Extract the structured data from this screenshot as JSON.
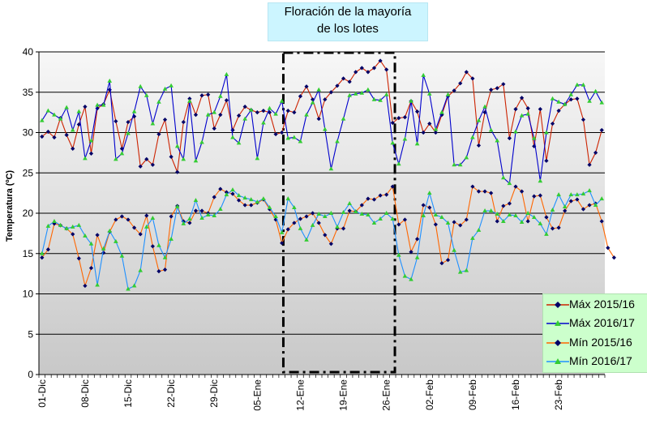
{
  "chart_data": {
    "type": "line",
    "title_line1": "Floración de la mayoría",
    "title_line2": "de los lotes",
    "ylabel": "Temperatura (ºC)",
    "ylim": [
      0,
      40
    ],
    "yticks": [
      0,
      5,
      10,
      15,
      20,
      25,
      30,
      35,
      40
    ],
    "grid": "horizontal",
    "legend_position": "bottom-right",
    "x_start": "01-Dic",
    "xtick_labels": [
      "01-Dic",
      "08-Dic",
      "15-Dic",
      "22-Dic",
      "29-Dic",
      "05-Ene",
      "12-Ene",
      "19-Ene",
      "26-Ene",
      "02-Feb",
      "09-Feb",
      "16-Feb",
      "23-Feb"
    ],
    "highlight_range_label": "Floración de la mayoría de los lotes",
    "highlight_range": [
      "10-Ene",
      "27-Ene"
    ],
    "series": [
      {
        "name": "Máx 2015/16",
        "color": "#cc2200",
        "marker": "diamond",
        "marker_color": "#000066",
        "values": [
          29.5,
          30.1,
          29.4,
          31.8,
          29.7,
          28.0,
          31.0,
          33.2,
          27.4,
          33.0,
          33.5,
          35.3,
          31.4,
          28.0,
          31.3,
          32.0,
          25.8,
          26.7,
          26.0,
          29.8,
          31.6,
          27.0,
          25.1,
          31.3,
          34.2,
          32.2,
          34.6,
          34.7,
          30.5,
          32.2,
          34.0,
          30.3,
          32.1,
          33.2,
          32.8,
          32.5,
          32.7,
          32.5,
          29.8,
          30.0,
          32.7,
          32.5,
          34.5,
          35.7,
          34.1,
          31.7,
          34.1,
          35.0,
          35.8,
          36.7,
          36.3,
          37.5,
          38.0,
          37.5,
          38.0,
          38.9,
          37.8,
          31.2,
          31.8,
          31.9,
          33.9,
          32.6,
          30.0,
          31.1,
          30.0,
          32.2,
          34.5,
          35.2,
          36.1,
          37.5,
          36.7,
          28.4,
          32.5,
          35.3,
          35.5,
          36.0,
          29.3,
          32.9,
          34.3,
          33.0,
          28.3,
          32.9,
          26.5,
          31.1,
          32.7,
          33.5,
          34.1,
          34.2,
          31.6,
          26.0,
          27.5,
          30.3
        ]
      },
      {
        "name": "Máx 2016/17",
        "color": "#0000cc",
        "marker": "triangle",
        "marker_color": "#33cc33",
        "values": [
          31.5,
          32.7,
          32.2,
          31.7,
          33.1,
          30.3,
          32.6,
          26.8,
          29.0,
          33.4,
          33.4,
          36.4,
          26.7,
          27.4,
          29.9,
          32.6,
          35.7,
          34.6,
          31.1,
          33.8,
          35.4,
          35.8,
          28.3,
          26.7,
          33.9,
          26.5,
          28.8,
          32.2,
          32.5,
          34.5,
          37.2,
          29.4,
          28.7,
          31.7,
          32.8,
          26.8,
          31.2,
          33.0,
          32.3,
          33.9,
          29.3,
          29.4,
          28.9,
          32.2,
          33.7,
          35.3,
          30.4,
          25.5,
          28.9,
          31.7,
          34.6,
          34.8,
          34.9,
          35.3,
          34.1,
          34.0,
          34.7,
          28.7,
          26.1,
          29.2,
          33.9,
          28.6,
          37.1,
          34.8,
          30.4,
          32.5,
          34.7,
          26.0,
          26.0,
          26.9,
          29.4,
          31.5,
          33.2,
          30.3,
          29.0,
          24.4,
          23.7,
          30.1,
          32.1,
          32.3,
          29.3,
          24.0,
          30.0,
          34.2,
          33.8,
          33.5,
          34.7,
          35.9,
          35.9,
          33.9,
          35.1,
          33.7
        ]
      },
      {
        "name": "Mín 2015/16",
        "color": "#ff6600",
        "marker": "diamond",
        "marker_color": "#000066",
        "values": [
          14.5,
          15.5,
          18.7,
          18.5,
          18.1,
          17.4,
          14.4,
          11.0,
          13.2,
          17.3,
          15.1,
          17.7,
          19.2,
          19.6,
          19.2,
          18.2,
          17.4,
          19.7,
          15.9,
          12.8,
          13.0,
          19.6,
          20.9,
          19.0,
          18.8,
          20.3,
          20.3,
          20.0,
          22.0,
          23.0,
          22.6,
          22.4,
          21.6,
          21.0,
          21.0,
          21.3,
          21.7,
          20.5,
          19.2,
          16.3,
          18.0,
          18.8,
          19.3,
          19.6,
          20.0,
          18.8,
          17.3,
          16.2,
          18.1,
          18.1,
          20.3,
          20.2,
          21.0,
          21.8,
          21.7,
          22.2,
          22.3,
          23.3,
          18.6,
          19.2,
          15.2,
          16.8,
          21.0,
          20.7,
          18.6,
          13.8,
          14.2,
          18.9,
          18.5,
          19.2,
          23.3,
          22.7,
          22.7,
          22.5,
          19.0,
          20.9,
          21.2,
          23.3,
          22.7,
          19.0,
          22.1,
          22.2,
          19.5,
          18.1,
          18.2,
          20.3,
          21.5,
          21.7,
          20.5,
          21.0,
          21.2,
          19.0,
          15.7,
          14.5
        ]
      },
      {
        "name": "Mín 2016/17",
        "color": "#1e90ff",
        "marker": "triangle",
        "marker_color": "#33cc33",
        "values": [
          15.0,
          18.4,
          19.0,
          18.5,
          18.1,
          18.3,
          18.5,
          17.2,
          16.2,
          11.1,
          15.6,
          17.8,
          16.5,
          14.7,
          10.6,
          11.0,
          12.9,
          18.3,
          19.4,
          16.0,
          14.5,
          16.8,
          20.8,
          18.7,
          19.3,
          21.6,
          19.4,
          19.8,
          19.7,
          20.5,
          22.3,
          22.9,
          22.2,
          21.9,
          21.7,
          21.4,
          21.8,
          20.7,
          19.6,
          17.6,
          21.8,
          20.7,
          18.1,
          16.7,
          18.5,
          19.9,
          19.6,
          20.0,
          18.3,
          20.1,
          21.2,
          20.2,
          19.9,
          19.8,
          18.8,
          19.3,
          20.0,
          19.3,
          14.8,
          12.2,
          11.8,
          14.5,
          19.7,
          22.5,
          19.8,
          19.5,
          18.8,
          15.4,
          12.7,
          12.9,
          16.9,
          17.9,
          20.3,
          20.3,
          19.9,
          19.0,
          19.8,
          19.7,
          18.9,
          20.0,
          19.5,
          18.7,
          17.4,
          20.4,
          22.3,
          20.8,
          22.3,
          22.3,
          22.4,
          22.8,
          21.0,
          21.8
        ]
      }
    ]
  }
}
